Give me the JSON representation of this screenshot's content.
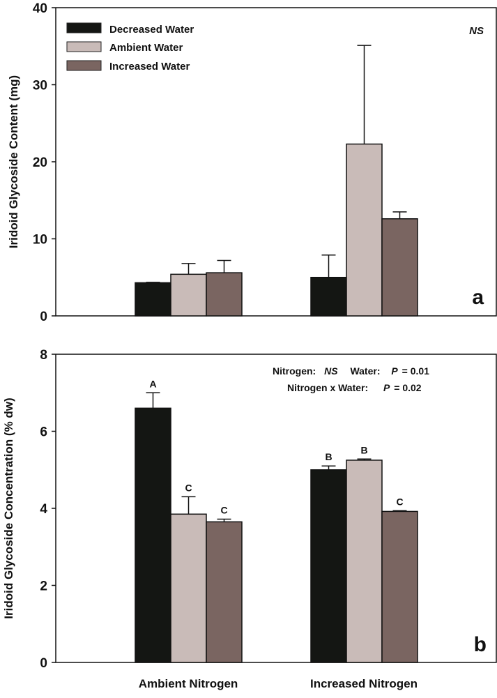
{
  "chart_data": [
    {
      "type": "bar",
      "panel_label": "a",
      "ylabel": "Iridoid Glycoside Content (mg)",
      "ylim": [
        0,
        40
      ],
      "yticks": [
        "0",
        "10",
        "20",
        "30",
        "40"
      ],
      "categories": [
        "Ambient Nitrogen",
        "Increased Nitrogen"
      ],
      "annotation": "NS",
      "legend": {
        "placement": "top-left"
      },
      "series": [
        {
          "name": "Decreased Water",
          "color": "#141613",
          "values": [
            4.3,
            5.0
          ],
          "error_upper": [
            4.35,
            7.9
          ]
        },
        {
          "name": "Ambient Water",
          "color": "#c9bbb8",
          "values": [
            5.4,
            22.3
          ],
          "error_upper": [
            6.8,
            35.1
          ]
        },
        {
          "name": "Increased Water",
          "color": "#7a6561",
          "values": [
            5.6,
            12.6
          ],
          "error_upper": [
            7.2,
            13.5
          ]
        }
      ]
    },
    {
      "type": "bar",
      "panel_label": "b",
      "ylabel": "Iridoid Glycoside Concentration (% dw)",
      "ylim": [
        0,
        8
      ],
      "yticks": [
        "0",
        "2",
        "4",
        "6",
        "8"
      ],
      "categories": [
        "Ambient Nitrogen",
        "Increased Nitrogen"
      ],
      "stats_line1": {
        "a": "Nitrogen:",
        "b": "NS",
        "c": "Water:",
        "d": "P",
        "e": "= 0.01"
      },
      "stats_line2": {
        "a": "Nitrogen x Water:",
        "b": "P",
        "c": "= 0.02"
      },
      "series": [
        {
          "name": "Decreased Water",
          "color": "#141613",
          "values": [
            6.6,
            5.0
          ],
          "error_upper": [
            7.0,
            5.1
          ],
          "letters": [
            "A",
            "B"
          ]
        },
        {
          "name": "Ambient Water",
          "color": "#c9bbb8",
          "values": [
            3.85,
            5.25
          ],
          "error_upper": [
            4.3,
            5.28
          ],
          "letters": [
            "C",
            "B"
          ]
        },
        {
          "name": "Increased Water",
          "color": "#7a6561",
          "values": [
            3.65,
            3.92
          ],
          "error_upper": [
            3.72,
            3.94
          ],
          "letters": [
            "C",
            "C"
          ]
        }
      ]
    }
  ]
}
